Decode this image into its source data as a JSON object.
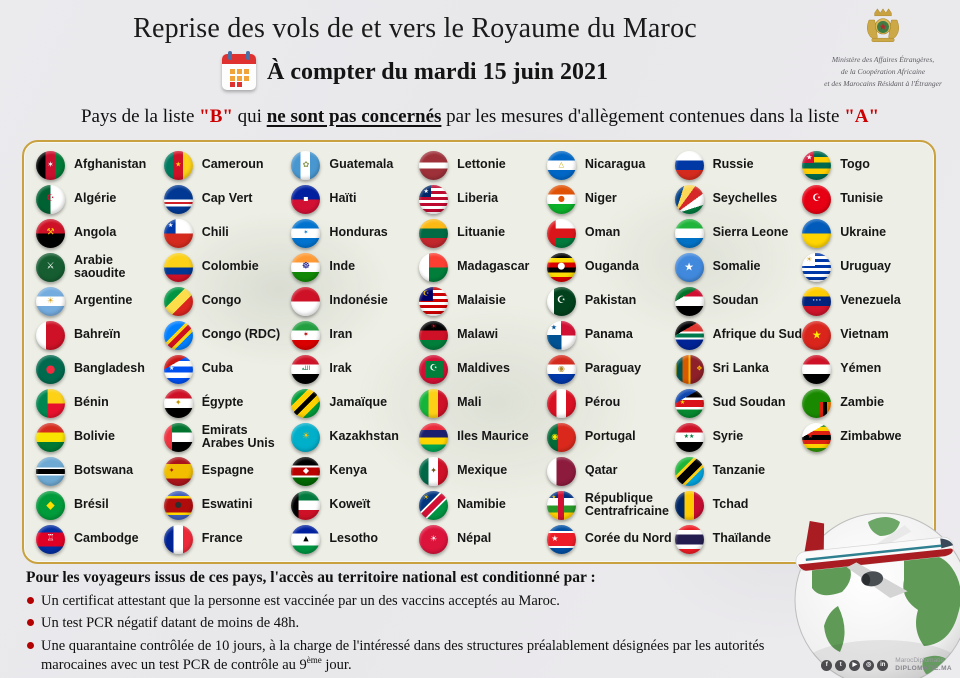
{
  "header": {
    "title": "Reprise des vols de et vers le Royaume du Maroc",
    "date_line": "À compter du mardi 15 juin 2021",
    "calendar_icon": "calendar-icon",
    "ministry": {
      "line1": "Ministère des Affaires Étrangères,",
      "line2": "de la Coopération Africaine",
      "line3": "et des Marocains Résidant à l'Étranger"
    },
    "subtitle": {
      "part1": "Pays de la liste ",
      "list_b": "\"B\"",
      "part2": " qui ",
      "emphasis": "ne sont pas concernés",
      "part3": " par les mesures d'allègement contenues dans la liste ",
      "list_a": "\"A\""
    }
  },
  "colors": {
    "accent_red": "#cc0000",
    "panel_border": "#c9a23f",
    "panel_background": "#edeee5",
    "bullet_dot": "#b30000"
  },
  "countries": [
    {
      "name": "Afghanistan",
      "flag": {
        "bg": "linear-gradient(to right,#000 33%,#c8102e 33% 66%,#007a36 66%)",
        "em": "✶",
        "emc": "#fff",
        "ems": 8
      }
    },
    {
      "name": "Algérie",
      "flag": {
        "bg": "linear-gradient(to right,#006233 50%,#fff 50%)",
        "em": "☪",
        "emc": "#d21034",
        "ems": 9
      }
    },
    {
      "name": "Angola",
      "flag": {
        "bg": "linear-gradient(#ce1126 50%,#000 50%)",
        "em": "⚒",
        "emc": "#ffcb00",
        "ems": 9
      }
    },
    {
      "name": "Arabie saoudite",
      "flag": {
        "bg": "#165d31",
        "em": "⚔",
        "emc": "#fff",
        "ems": 9
      }
    },
    {
      "name": "Argentine",
      "flag": {
        "bg": "linear-gradient(#74acdf 33%,#fff 33% 66%,#74acdf 66%)",
        "em": "☀",
        "emc": "#d4a017",
        "ems": 8
      }
    },
    {
      "name": "Bahreïn",
      "flag": {
        "bg": "linear-gradient(to right,#fff 35%,#ce1126 35%)"
      }
    },
    {
      "name": "Bangladesh",
      "flag": {
        "bg": "#006a4e",
        "em": "●",
        "emc": "#f42a41",
        "ems": 11
      }
    },
    {
      "name": "Bénin",
      "flag": {
        "bg": "linear-gradient(#008751,#008751) left/40% 100% no-repeat,linear-gradient(#fcd116 50%,#e8112d 50%)"
      }
    },
    {
      "name": "Bolivie",
      "flag": {
        "bg": "linear-gradient(#d52b1e 33%,#f9e300 33% 66%,#007934 66%)"
      }
    },
    {
      "name": "Botswana",
      "flag": {
        "bg": "linear-gradient(#6da9d2 36%,#fff 36% 42%,#000 42% 58%,#fff 58% 64%,#6da9d2 64%)"
      }
    },
    {
      "name": "Brésil",
      "flag": {
        "bg": "#009b3a",
        "em": "◆",
        "emc": "#ffdf00",
        "ems": 11
      }
    },
    {
      "name": "Cambodge",
      "flag": {
        "bg": "linear-gradient(#032ea1 25%,#e00025 25% 75%,#032ea1 75%)",
        "em": "♖",
        "emc": "#fff",
        "ems": 9
      }
    },
    {
      "name": "Cameroun",
      "flag": {
        "bg": "linear-gradient(to right,#007a5e 33%,#ce1126 33% 66%,#fcd116 66%)",
        "em": "★",
        "emc": "#fcd116",
        "ems": 7
      }
    },
    {
      "name": "Cap Vert",
      "flag": {
        "bg": "linear-gradient(#003893 50%,#fff 50% 58%,#cf2027 58% 66%,#fff 66% 74%,#003893 74%)"
      }
    },
    {
      "name": "Chili",
      "flag": {
        "bg": "linear-gradient(#0039a6,#0039a6) left top/40% 50% no-repeat,linear-gradient(#fff 50%,#d52b1e 50%)",
        "em": "★",
        "emc": "#fff",
        "ems": 6,
        "pos": "tl"
      }
    },
    {
      "name": "Colombie",
      "flag": {
        "bg": "linear-gradient(#fcd116 50%,#003893 50% 75%,#ce1126 75%)"
      }
    },
    {
      "name": "Congo",
      "flag": {
        "bg": "linear-gradient(135deg,#009543 38%,#fbde4a 38% 62%,#dc241f 62%)"
      }
    },
    {
      "name": "Congo (RDC)",
      "flag": {
        "bg": "linear-gradient(135deg,#007fff 40%,#f7d618 40% 48%,#ce1021 48% 60%,#f7d618 60% 68%,#007fff 68%)"
      }
    },
    {
      "name": "Cuba",
      "flag": {
        "bg": "conic-gradient(from 300deg at 0% 50%,#cb1515 0 120deg,rgba(0,0,0,0) 120deg),linear-gradient(#0050f0 20%,#fff 20% 40%,#0050f0 40% 60%,#fff 60% 80%,#0050f0 80%)",
        "em": "★",
        "emc": "#fff",
        "ems": 6,
        "pos": "l"
      }
    },
    {
      "name": "Égypte",
      "flag": {
        "bg": "linear-gradient(#ce1126 33%,#fff 33% 66%,#000 66%)",
        "em": "✦",
        "emc": "#c09300",
        "ems": 8
      }
    },
    {
      "name": "Emirats Arabes Unis",
      "flag": {
        "bg": "linear-gradient(#ef3340,#ef3340) left/28% 100% no-repeat,linear-gradient(#00732f 33%,#fff 33% 66%,#000 66%)"
      }
    },
    {
      "name": "Espagne",
      "flag": {
        "bg": "linear-gradient(#aa151b 25%,#f1bf00 25% 75%,#aa151b 75%)",
        "em": "✦",
        "emc": "#aa151b",
        "ems": 7,
        "pos": "l"
      }
    },
    {
      "name": "Eswatini",
      "flag": {
        "bg": "linear-gradient(#3e5eb9 18%,#ffd900 18% 26%,#b10c0c 26% 74%,#ffd900 74% 82%,#3e5eb9 82%)",
        "em": "●",
        "emc": "#2e2e2e",
        "ems": 8
      }
    },
    {
      "name": "France",
      "flag": {
        "bg": "linear-gradient(to right,#002395 33%,#fff 33% 66%,#ed2939 66%)"
      }
    },
    {
      "name": "Guatemala",
      "flag": {
        "bg": "linear-gradient(to right,#4997d0 33%,#fff 33% 66%,#4997d0 66%)",
        "em": "✿",
        "emc": "#8a9a56",
        "ems": 8
      }
    },
    {
      "name": "Haïti",
      "flag": {
        "bg": "linear-gradient(#00209f 50%,#d21034 50%)",
        "em": "▪",
        "emc": "#fff",
        "ems": 8
      }
    },
    {
      "name": "Honduras",
      "flag": {
        "bg": "linear-gradient(#0073cf 33%,#fff 33% 66%,#0073cf 66%)",
        "em": "✶",
        "emc": "#0073cf",
        "ems": 6
      }
    },
    {
      "name": "Inde",
      "flag": {
        "bg": "linear-gradient(#ff9933 33%,#fff 33% 66%,#128807 66%)",
        "em": "☸",
        "emc": "#000080",
        "ems": 9
      }
    },
    {
      "name": "Indonésie",
      "flag": {
        "bg": "linear-gradient(#ce1126 50%,#fff 50%)"
      }
    },
    {
      "name": "Iran",
      "flag": {
        "bg": "linear-gradient(#239f40 33%,#fff 33% 66%,#da0000 66%)",
        "em": "✶",
        "emc": "#b00000",
        "ems": 7
      }
    },
    {
      "name": "Irak",
      "flag": {
        "bg": "linear-gradient(#ce1126 33%,#fff 33% 66%,#000 66%)",
        "em": "الله",
        "emc": "#007a3d",
        "ems": 6
      }
    },
    {
      "name": "Jamaïque",
      "flag": {
        "bg": "linear-gradient(135deg,#009b3a 30%,#fed100 30% 44%,#000 44% 56%,#fed100 56% 70%,#009b3a 70%)"
      }
    },
    {
      "name": "Kazakhstan",
      "flag": {
        "bg": "#00afca",
        "em": "☀",
        "emc": "#fec50c",
        "ems": 9
      }
    },
    {
      "name": "Kenya",
      "flag": {
        "bg": "linear-gradient(#000 30%,#fff 30% 36%,#bb0000 36% 64%,#fff 64% 70%,#006600 70%)",
        "em": "◆",
        "emc": "#fff",
        "ems": 8
      }
    },
    {
      "name": "Koweït",
      "flag": {
        "bg": "linear-gradient(#000,#000) left/26% 100% no-repeat,linear-gradient(#007a3d 33%,#fff 33% 66%,#ce1126 66%)"
      }
    },
    {
      "name": "Lesotho",
      "flag": {
        "bg": "linear-gradient(#00209f 30%,#fff 30% 70%,#009543 70%)",
        "em": "▲",
        "emc": "#000",
        "ems": 7
      }
    },
    {
      "name": "Lettonie",
      "flag": {
        "bg": "linear-gradient(#9e3039 40%,#fff 40% 60%,#9e3039 60%)"
      }
    },
    {
      "name": "Liberia",
      "flag": {
        "bg": "linear-gradient(#002868,#002868) left top/42% 42% no-repeat,repeating-linear-gradient(#bf0a30 0 3px,#fff 3px 6px)",
        "em": "★",
        "emc": "#fff",
        "ems": 6,
        "pos": "tl"
      }
    },
    {
      "name": "Lituanie",
      "flag": {
        "bg": "linear-gradient(#fdb913 33%,#006a44 33% 66%,#c1272d 66%)"
      }
    },
    {
      "name": "Madagascar",
      "flag": {
        "bg": "linear-gradient(#fff,#fff) left/35% 100% no-repeat,linear-gradient(#fc3d32 50%,#007e3a 50%)"
      }
    },
    {
      "name": "Malaisie",
      "flag": {
        "bg": "linear-gradient(#010066,#010066) left top/48% 48% no-repeat,repeating-linear-gradient(#cc0001 0 3px,#fff 3px 6px)",
        "em": "☪",
        "emc": "#ffcc00",
        "ems": 7,
        "pos": "tl"
      }
    },
    {
      "name": "Malawi",
      "flag": {
        "bg": "linear-gradient(#000 33%,#ce1126 33% 66%,#007e3a 66%)",
        "em": "☀",
        "emc": "#ce1126",
        "ems": 7,
        "pos": "t"
      }
    },
    {
      "name": "Maldives",
      "flag": {
        "bg": "linear-gradient(#007e3a,#007e3a) center/62% 58% no-repeat,#d21034",
        "em": "☪",
        "emc": "#fff",
        "ems": 9
      }
    },
    {
      "name": "Mali",
      "flag": {
        "bg": "linear-gradient(to right,#14b53a 33%,#fcd116 33% 66%,#ce1126 66%)"
      }
    },
    {
      "name": "Iles Maurice",
      "flag": {
        "bg": "linear-gradient(#ea2839 25%,#1a206d 25% 50%,#ffd500 50% 75%,#00a551 75%)"
      }
    },
    {
      "name": "Mexique",
      "flag": {
        "bg": "linear-gradient(to right,#006847 33%,#fff 33% 66%,#ce1126 66%)",
        "em": "✦",
        "emc": "#6b4e16",
        "ems": 8
      }
    },
    {
      "name": "Namibie",
      "flag": {
        "bg": "linear-gradient(135deg,#003580 38%,#fff 38% 43%,#d21034 43% 57%,#fff 57% 62%,#009543 62%)",
        "em": "☀",
        "emc": "#ffce00",
        "ems": 7,
        "pos": "tl"
      }
    },
    {
      "name": "Népal",
      "flag": {
        "bg": "#dc143c",
        "em": "☀",
        "emc": "#fff",
        "ems": 8
      }
    },
    {
      "name": "Nicaragua",
      "flag": {
        "bg": "linear-gradient(#0067c6 33%,#fff 33% 66%,#0067c6 66%)",
        "em": "△",
        "emc": "#c8a400",
        "ems": 7
      }
    },
    {
      "name": "Niger",
      "flag": {
        "bg": "linear-gradient(#e05206 33%,#fff 33% 66%,#0db02b 66%)",
        "em": "●",
        "emc": "#e05206",
        "ems": 8
      }
    },
    {
      "name": "Oman",
      "flag": {
        "bg": "linear-gradient(#db161b,#db161b) left/30% 100% no-repeat,linear-gradient(#fff 33%,#db161b 33% 66%,#007a3d 66%)"
      }
    },
    {
      "name": "Ouganda",
      "flag": {
        "bg": "linear-gradient(#000 17%,#fcdc04 17% 33%,#d90000 33% 50%,#000 50% 67%,#fcdc04 67% 83%,#d90000 83%)",
        "em": "●",
        "emc": "#fff",
        "ems": 9
      }
    },
    {
      "name": "Pakistan",
      "flag": {
        "bg": "linear-gradient(to right,#fff 25%,#01411c 25%)",
        "em": "☪",
        "emc": "#fff",
        "ems": 10
      }
    },
    {
      "name": "Panama",
      "flag": {
        "bg": "linear-gradient(#d21034,#d21034) right top/50% 50% no-repeat,linear-gradient(#005293,#005293) left bottom/50% 50% no-repeat,linear-gradient(#fff,#fff)",
        "em": "★",
        "emc": "#005293",
        "ems": 7,
        "pos": "tl"
      }
    },
    {
      "name": "Paraguay",
      "flag": {
        "bg": "linear-gradient(#d52b1e 33%,#fff 33% 66%,#0038a8 66%)",
        "em": "◉",
        "emc": "#b08d2f",
        "ems": 8
      }
    },
    {
      "name": "Pérou",
      "flag": {
        "bg": "linear-gradient(to right,#d91023 33%,#fff 33% 66%,#d91023 66%)"
      }
    },
    {
      "name": "Portugal",
      "flag": {
        "bg": "linear-gradient(to right,#046a38 38%,#da291c 38%)",
        "em": "◉",
        "emc": "#ffe900",
        "ems": 8,
        "pos": "l"
      }
    },
    {
      "name": "Qatar",
      "flag": {
        "bg": "linear-gradient(to right,#fff 32%,#8d1b3d 32%)"
      }
    },
    {
      "name": "République Centrafricaine",
      "flag": {
        "bg": "linear-gradient(#d21034,#d21034) center top/22% 100% no-repeat,linear-gradient(#003082 25%,#fff 25% 50%,#289728 50% 75%,#ffce00 75%)",
        "em": "★",
        "emc": "#ffce00",
        "ems": 5,
        "pos": "tl"
      }
    },
    {
      "name": "Corée du Nord",
      "flag": {
        "bg": "linear-gradient(#024fa2 20%,#fff 20% 27%,#ed1c27 27% 73%,#fff 73% 80%,#024fa2 80%)",
        "em": "★",
        "emc": "#fff",
        "ems": 8,
        "pos": "l"
      }
    },
    {
      "name": "Russie",
      "flag": {
        "bg": "linear-gradient(#fff 33%,#0039a6 33% 66%,#d52b1e 66%)"
      }
    },
    {
      "name": "Seychelles",
      "flag": {
        "bg": "conic-gradient(from 0deg at 0% 100%,#003f87 0 18deg,#fcd856 18deg 36deg,#d62828 36deg 54deg,#fff 54deg 72deg,#007a3d 72deg)"
      }
    },
    {
      "name": "Sierra Leone",
      "flag": {
        "bg": "linear-gradient(#1eb53a 33%,#fff 33% 66%,#0072c6 66%)"
      }
    },
    {
      "name": "Somalie",
      "flag": {
        "bg": "#4189dd",
        "em": "★",
        "emc": "#fff",
        "ems": 11
      }
    },
    {
      "name": "Soudan",
      "flag": {
        "bg": "conic-gradient(from 300deg at 0% 50%,#007229 0 120deg,rgba(0,0,0,0) 120deg),linear-gradient(#d21034 33%,#fff 33% 66%,#000 66%)"
      }
    },
    {
      "name": "Afrique du Sud",
      "flag": {
        "bg": "conic-gradient(from 300deg at 0% 50%,#000 0 120deg,rgba(0,0,0,0) 120deg),linear-gradient(#de3831 36%,#fff 36% 43%,#007a4d 43% 57%,#fff 57% 64%,#002395 64%)"
      }
    },
    {
      "name": "Sri Lanka",
      "flag": {
        "bg": "linear-gradient(to right,#ffb700 6%,#00534e 6% 26%,#d65a00 26% 46%,#ffb700 46% 54%,#8d2029 54%)",
        "em": "❖",
        "emc": "#ffb700",
        "ems": 7,
        "pos": "r"
      }
    },
    {
      "name": "Sud Soudan",
      "flag": {
        "bg": "conic-gradient(from 300deg at 0% 50%,#0f47af 0 120deg,rgba(0,0,0,0) 120deg),linear-gradient(#000 30%,#fff 30% 38%,#da121a 38% 62%,#fff 62% 70%,#078930 70%)",
        "em": "★",
        "emc": "#fcdd09",
        "ems": 6,
        "pos": "l"
      }
    },
    {
      "name": "Syrie",
      "flag": {
        "bg": "linear-gradient(#ce1126 33%,#fff 33% 66%,#000 66%)",
        "em": "★★",
        "emc": "#007a3d",
        "ems": 6
      }
    },
    {
      "name": "Tanzanie",
      "flag": {
        "bg": "linear-gradient(135deg,#1eb53a 33%,#fcd116 33% 40%,#000 40% 60%,#fcd116 60% 67%,#00a3dd 67%)"
      }
    },
    {
      "name": "Tchad",
      "flag": {
        "bg": "linear-gradient(to right,#002664 33%,#fecb00 33% 66%,#c60c30 66%)"
      }
    },
    {
      "name": "Thaïlande",
      "flag": {
        "bg": "linear-gradient(#ed1c24 17%,#fff 17% 33%,#241d4f 33% 67%,#fff 67% 83%,#ed1c24 83%)"
      }
    },
    {
      "name": "Togo",
      "flag": {
        "bg": "linear-gradient(#d21034,#d21034) left top/42% 42% no-repeat,linear-gradient(#006a4e 20%,#ffce00 20% 40%,#006a4e 40% 60%,#ffce00 60% 80%,#006a4e 80%)",
        "em": "★",
        "emc": "#fff",
        "ems": 7,
        "pos": "tl"
      }
    },
    {
      "name": "Tunisie",
      "flag": {
        "bg": "#e70013",
        "em": "☪",
        "emc": "#fff",
        "ems": 10
      }
    },
    {
      "name": "Ukraine",
      "flag": {
        "bg": "linear-gradient(#005bbb 50%,#ffd500 50%)"
      }
    },
    {
      "name": "Uruguay",
      "flag": {
        "bg": "linear-gradient(#fff,#fff) left top/45% 45% no-repeat,repeating-linear-gradient(#0038a8 0 3px,#fff 3px 6px)",
        "em": "☀",
        "emc": "#d4a017",
        "ems": 7,
        "pos": "tl"
      }
    },
    {
      "name": "Venezuela",
      "flag": {
        "bg": "linear-gradient(#ffcc00 33%,#00247d 33% 66%,#cf142b 66%)",
        "em": "⋆⋆⋆",
        "emc": "#fff",
        "ems": 5
      }
    },
    {
      "name": "Vietnam",
      "flag": {
        "bg": "#da251d",
        "em": "★",
        "emc": "#ffef00",
        "ems": 11
      }
    },
    {
      "name": "Yémen",
      "flag": {
        "bg": "linear-gradient(#ce1126 33%,#fff 33% 66%,#000 66%)"
      }
    },
    {
      "name": "Zambie",
      "flag": {
        "bg": "linear-gradient(to right,#de2010 0 33%,#000 33% 66%,#ef7d00 66%) right bottom/42% 55% no-repeat,linear-gradient(#198a00,#198a00)"
      }
    },
    {
      "name": "Zimbabwe",
      "flag": {
        "bg": "conic-gradient(from 300deg at 0% 50%,#fff 0 120deg,rgba(0,0,0,0) 120deg),linear-gradient(#319208 14%,#ffd200 14% 28%,#de2010 28% 42%,#000 42% 58%,#de2010 58% 72%,#ffd200 72% 86%,#319208 86%)",
        "em": "★",
        "emc": "#de2010",
        "ems": 6,
        "pos": "l"
      }
    }
  ],
  "footer": {
    "intro": "Pour les voyageurs issus de ces pays, l'accès au territoire national est conditionné par :",
    "bullets": [
      {
        "t": "Un certificat attestant que la personne est vaccinée par un des vaccins acceptés au Maroc."
      },
      {
        "t": "Un test PCR négatif datant de moins de 48h."
      },
      {
        "t": "Une quarantaine contrôlée de 10 jours, à la charge de l'intéressé dans des structures préalablement désignées par les autorités marocaines avec un test PCR de contrôle au 9",
        "sup": "ème",
        "post": " jour."
      }
    ]
  },
  "branding": {
    "social": [
      {
        "name": "facebook-icon",
        "glyph": "f"
      },
      {
        "name": "twitter-icon",
        "glyph": "t"
      },
      {
        "name": "youtube-icon",
        "glyph": "▶"
      },
      {
        "name": "instagram-icon",
        "glyph": "◎"
      },
      {
        "name": "linkedin-icon",
        "glyph": "in"
      }
    ],
    "handle": "MarocDiplomatie",
    "site": "DIPLOMATIE.MA"
  }
}
